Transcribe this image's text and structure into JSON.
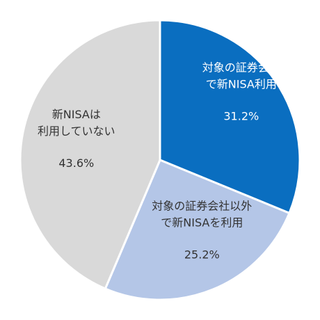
{
  "chart_data": {
    "type": "pie",
    "start_angle_deg": 0,
    "direction": "clockwise",
    "slices": [
      {
        "label_lines": [
          "対象の証券会社",
          "で新NISA利用"
        ],
        "value": 31.2,
        "value_label": "31.2%",
        "color": "#0A6EC0",
        "text_color": "#ffffff"
      },
      {
        "label_lines": [
          "対象の証券会社以外",
          "で新NISAを利用"
        ],
        "value": 25.2,
        "value_label": "25.2%",
        "color": "#B4C6E7",
        "text_color": "#333333"
      },
      {
        "label_lines": [
          "新NISAは",
          "利用していない"
        ],
        "value": 43.6,
        "value_label": "43.6%",
        "color": "#D9D9D9",
        "text_color": "#333333"
      }
    ]
  }
}
